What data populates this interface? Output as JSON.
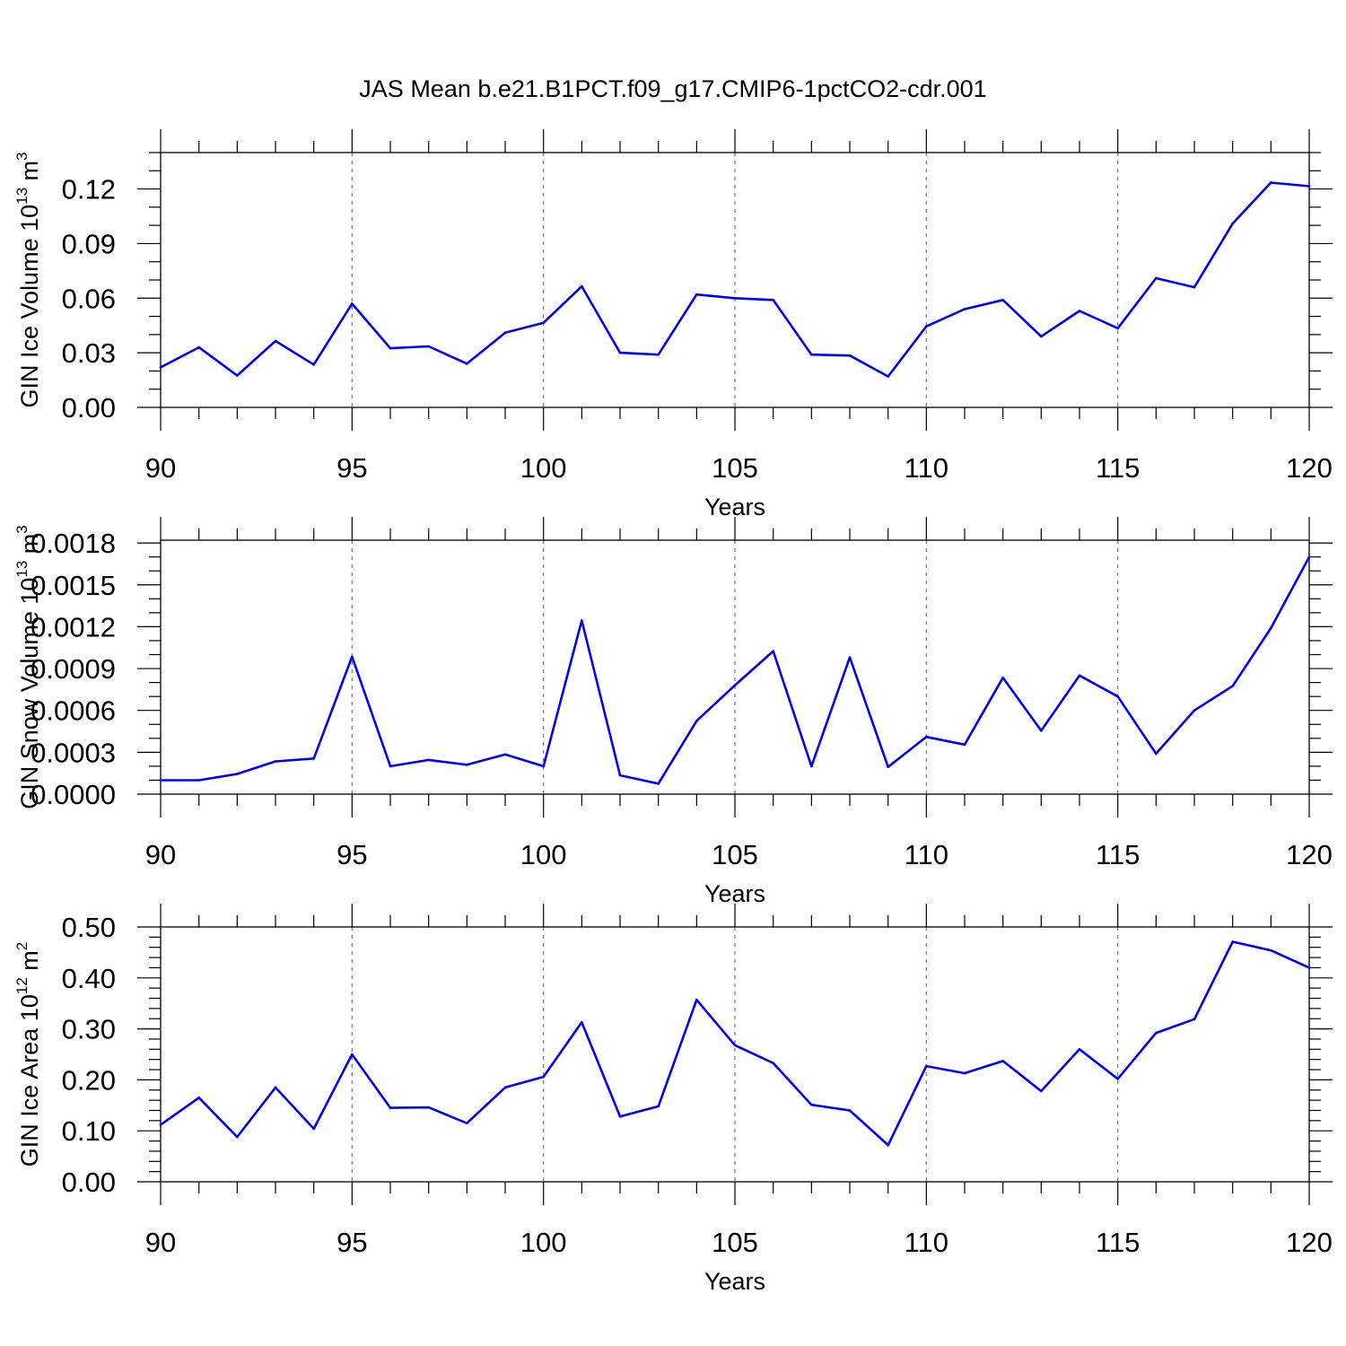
{
  "figure": {
    "title": "JAS Mean b.e21.B1PCT.f09_g17.CMIP6-1pctCO2-cdr.001"
  },
  "colors": {
    "line": "#0000ff",
    "grid": "#777777",
    "frame": "#000000"
  },
  "chart_data": [
    {
      "type": "line",
      "title": "",
      "xlabel": "Years",
      "ylabel": "GIN Ice Volume 10",
      "ylabel_sup": "13",
      "ylabel_unit": " m",
      "ylabel_unit_sup": "3",
      "xlim": [
        90,
        120
      ],
      "ylim": [
        0,
        0.14
      ],
      "x_ticks": [
        90,
        95,
        100,
        105,
        110,
        115,
        120
      ],
      "x_tick_labels": [
        "90",
        "95",
        "100",
        "105",
        "110",
        "115",
        "120"
      ],
      "y_ticks": [
        0,
        0.03,
        0.06,
        0.09,
        0.12
      ],
      "y_tick_labels": [
        "0.00",
        "0.03",
        "0.06",
        "0.09",
        "0.12"
      ],
      "y_minor_step": 0.01,
      "grid": "x-dashed",
      "series": [
        {
          "x": [
            90,
            91,
            92,
            93,
            94,
            95,
            96,
            97,
            98,
            99,
            100,
            101,
            102,
            103,
            104,
            105,
            106,
            107,
            108,
            109,
            110,
            111,
            112,
            113,
            114,
            115,
            116,
            117,
            118,
            119,
            120
          ],
          "values": [
            0.022,
            0.033,
            0.0175,
            0.0365,
            0.0235,
            0.057,
            0.0325,
            0.0335,
            0.024,
            0.041,
            0.0465,
            0.0665,
            0.03,
            0.029,
            0.062,
            0.06,
            0.059,
            0.029,
            0.0285,
            0.017,
            0.0445,
            0.054,
            0.059,
            0.039,
            0.053,
            0.0435,
            0.071,
            0.066,
            0.101,
            0.1235,
            0.1215
          ]
        }
      ]
    },
    {
      "type": "line",
      "title": "",
      "xlabel": "Years",
      "ylabel": "GIN Snow Volume 10",
      "ylabel_sup": "13",
      "ylabel_unit": " m",
      "ylabel_unit_sup": "3",
      "xlim": [
        90,
        120
      ],
      "ylim": [
        0,
        0.00182
      ],
      "x_ticks": [
        90,
        95,
        100,
        105,
        110,
        115,
        120
      ],
      "x_tick_labels": [
        "90",
        "95",
        "100",
        "105",
        "110",
        "115",
        "120"
      ],
      "y_ticks": [
        0,
        0.0003,
        0.0006,
        0.0009,
        0.0012,
        0.0015,
        0.0018
      ],
      "y_tick_labels": [
        "0.0000",
        "0.0003",
        "0.0006",
        "0.0009",
        "0.0012",
        "0.0015",
        "0.0018"
      ],
      "y_minor_step": 0.0001,
      "grid": "x-dashed",
      "series": [
        {
          "x": [
            90,
            91,
            92,
            93,
            94,
            95,
            96,
            97,
            98,
            99,
            100,
            101,
            102,
            103,
            104,
            105,
            106,
            107,
            108,
            109,
            110,
            111,
            112,
            113,
            114,
            115,
            116,
            117,
            118,
            119,
            120
          ],
          "values": [
            0.0001,
            0.0001,
            0.000145,
            0.000235,
            0.000255,
            0.000985,
            0.0002,
            0.000245,
            0.00021,
            0.000285,
            0.0002,
            0.001245,
            0.000135,
            7.5e-05,
            0.000525,
            0.00078,
            0.001025,
            0.0002,
            0.00098,
            0.000195,
            0.00041,
            0.000355,
            0.000835,
            0.000455,
            0.00085,
            0.0007,
            0.00029,
            0.0006,
            0.000775,
            0.00119,
            0.0017
          ]
        }
      ]
    },
    {
      "type": "line",
      "title": "",
      "xlabel": "Years",
      "ylabel": "GIN Ice Area 10",
      "ylabel_sup": "12",
      "ylabel_unit": " m",
      "ylabel_unit_sup": "2",
      "xlim": [
        90,
        120
      ],
      "ylim": [
        0,
        0.5
      ],
      "x_ticks": [
        90,
        95,
        100,
        105,
        110,
        115,
        120
      ],
      "x_tick_labels": [
        "90",
        "95",
        "100",
        "105",
        "110",
        "115",
        "120"
      ],
      "y_ticks": [
        0,
        0.1,
        0.2,
        0.3,
        0.4,
        0.5
      ],
      "y_tick_labels": [
        "0.00",
        "0.10",
        "0.20",
        "0.30",
        "0.40",
        "0.50"
      ],
      "y_minor_step": 0.02,
      "grid": "x-dashed",
      "series": [
        {
          "x": [
            90,
            91,
            92,
            93,
            94,
            95,
            96,
            97,
            98,
            99,
            100,
            101,
            102,
            103,
            104,
            105,
            106,
            107,
            108,
            109,
            110,
            111,
            112,
            113,
            114,
            115,
            116,
            117,
            118,
            119,
            120
          ],
          "values": [
            0.112,
            0.165,
            0.088,
            0.185,
            0.104,
            0.25,
            0.145,
            0.146,
            0.115,
            0.185,
            0.206,
            0.313,
            0.128,
            0.148,
            0.357,
            0.268,
            0.233,
            0.151,
            0.14,
            0.072,
            0.227,
            0.213,
            0.237,
            0.178,
            0.26,
            0.202,
            0.292,
            0.319,
            0.471,
            0.454,
            0.42
          ]
        }
      ]
    }
  ]
}
